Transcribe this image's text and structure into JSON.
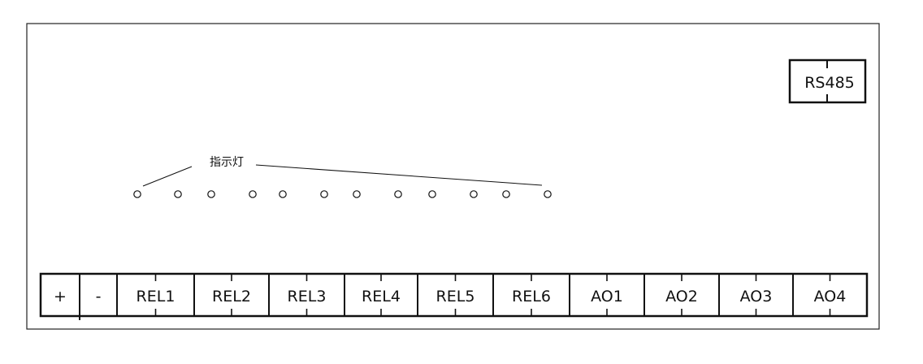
{
  "rs485": {
    "label": "RS485"
  },
  "indicator": {
    "label": "指示灯",
    "count": 12
  },
  "terminals": [
    {
      "label": "+"
    },
    {
      "label": "-"
    },
    {
      "label": "REL1"
    },
    {
      "label": "REL2"
    },
    {
      "label": "REL3"
    },
    {
      "label": "REL4"
    },
    {
      "label": "REL5"
    },
    {
      "label": "REL6"
    },
    {
      "label": "AO1"
    },
    {
      "label": "AO2"
    },
    {
      "label": "AO3"
    },
    {
      "label": "AO4"
    }
  ]
}
